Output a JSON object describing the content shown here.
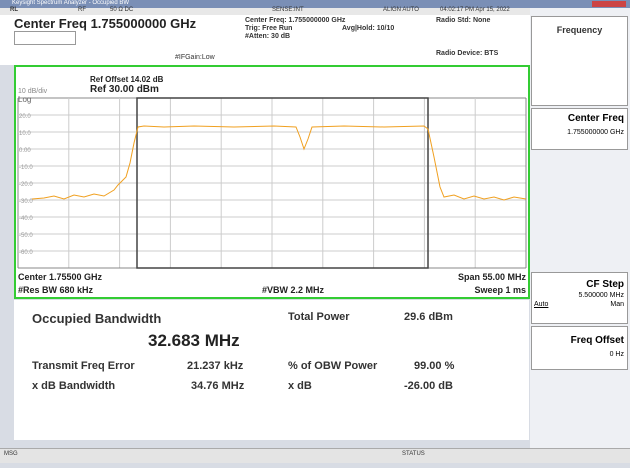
{
  "title_bar": {
    "title": "Keysight Spectrum Analyzer - Occupied BW"
  },
  "status_row": {
    "rl": "RL",
    "rf": "RF",
    "impedance": "50 Ω  DC",
    "sense": "SENSE:INT",
    "align": "ALIGN AUTO",
    "time": "04:02:17 PM Apr 15, 2022"
  },
  "header": {
    "center_freq": "Center Freq 1.755000000 GHz",
    "ifgain": "#IFGain:Low",
    "cf_info": "Center Freq: 1.755000000 GHz",
    "trig": "Trig: Free Run",
    "avg": "Avg|Hold: 10/10",
    "atten": "#Atten: 30 dB",
    "radio_std": "Radio Std: None",
    "radio_device": "Radio Device: BTS"
  },
  "plot": {
    "ref_offset": "Ref Offset 14.02 dB",
    "scale": "10 dB/div",
    "ref_level": "Ref 30.00 dBm",
    "log": "Log",
    "y_labels": [
      "20.0",
      "10.0",
      "0.00",
      "-10.0",
      "-20.0",
      "-30.0",
      "-40.0",
      "-50.0",
      "-60.0"
    ],
    "center": "Center 1.75500 GHz",
    "res_bw": "#Res BW  680 kHz",
    "vbw": "#VBW  2.2 MHz",
    "span": "Span 55.00 MHz",
    "sweep": "Sweep  1 ms"
  },
  "results": {
    "obw_label": "Occupied Bandwidth",
    "obw_value": "32.683 MHz",
    "total_power_label": "Total Power",
    "total_power_value": "29.6 dBm",
    "tfe_label": "Transmit Freq Error",
    "tfe_value": "21.237 kHz",
    "obw_pct_label": "% of OBW Power",
    "obw_pct_value": "99.00 %",
    "xdb_bw_label": "x dB Bandwidth",
    "xdb_bw_value": "34.76 MHz",
    "xdb_label": "x dB",
    "xdb_value": "-26.00 dB"
  },
  "sidebar": {
    "menu": "Frequency",
    "keys": [
      {
        "label": "Center Freq",
        "value": "1.755000000 GHz"
      },
      {
        "label": "CF Step",
        "value": "5.500000 MHz",
        "auto": "Auto",
        "man": "Man"
      },
      {
        "label": "Freq Offset",
        "value": "0 Hz"
      }
    ]
  },
  "bottom_bar": {
    "msg": "MSG",
    "status": "STATUS"
  }
}
